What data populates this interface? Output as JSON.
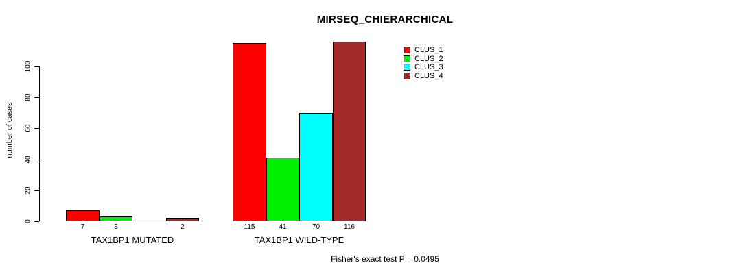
{
  "chart_data": {
    "type": "bar",
    "title": "MIRSEQ_CHIERARCHICAL",
    "ylabel": "number of cases",
    "xlabel": "",
    "categories": [
      "TAX1BP1 MUTATED",
      "TAX1BP1 WILD-TYPE"
    ],
    "series": [
      {
        "name": "CLUS_1",
        "color": "#ff0000",
        "values": [
          7,
          115
        ]
      },
      {
        "name": "CLUS_2",
        "color": "#00ee00",
        "values": [
          3,
          41
        ]
      },
      {
        "name": "CLUS_3",
        "color": "#00ffff",
        "values": [
          0,
          70
        ]
      },
      {
        "name": "CLUS_4",
        "color": "#a52a2a",
        "values": [
          2,
          116
        ]
      }
    ],
    "bar_value_labels": [
      [
        "7",
        "3",
        "",
        "2"
      ],
      [
        "115",
        "41",
        "70",
        "116"
      ]
    ],
    "ylim": [
      0,
      100
    ],
    "yticks": [
      0,
      20,
      40,
      60,
      80,
      100
    ],
    "grid": false,
    "legend_position": "top-right",
    "annotation": "Fisher's exact test P = 0.0495"
  },
  "colors": {
    "axis": "#000000",
    "text": "#000000",
    "background": "#ffffff"
  }
}
